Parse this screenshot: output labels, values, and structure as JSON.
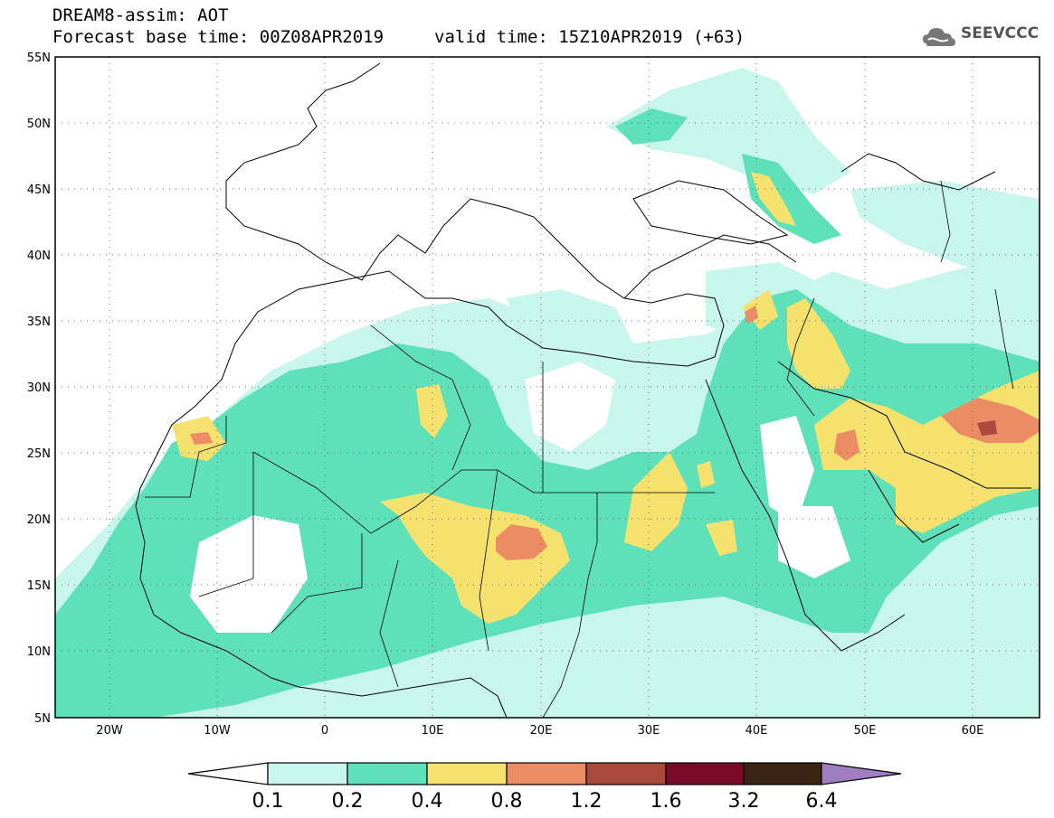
{
  "title": {
    "model_line": "DREAM8-assim: AOT",
    "base_time": "Forecast base time: 00Z08APR2019",
    "valid_time": "valid time: 15Z10APR2019 (+63)"
  },
  "logo": {
    "text": "SEEVCCC",
    "icon": "cloud-icon"
  },
  "map": {
    "lon_range": [
      -25,
      65
    ],
    "lat_range": [
      5,
      55
    ],
    "lat_ticks": [
      "55N",
      "50N",
      "45N",
      "40N",
      "35N",
      "30N",
      "25N",
      "20N",
      "15N",
      "10N",
      "5N"
    ],
    "lon_ticks": [
      "20W",
      "10W",
      "0",
      "10E",
      "20E",
      "30E",
      "40E",
      "50E",
      "60E"
    ]
  },
  "colorbar": {
    "labels": [
      "0.1",
      "0.2",
      "0.4",
      "0.8",
      "1.2",
      "1.6",
      "3.2",
      "6.4"
    ],
    "colors": [
      "#ffffff",
      "#c8f5ec",
      "#5ee0b8",
      "#f5e26e",
      "#eb8c64",
      "#a84a3c",
      "#7a0a28",
      "#3c2414",
      "#a07cc0"
    ]
  },
  "colors": {
    "aot_0_1_0_2": "#c8f5ec",
    "aot_0_2_0_4": "#5ee0b8",
    "aot_0_4_0_8": "#f5e26e",
    "aot_0_8_1_2": "#eb8c64",
    "aot_1_2_1_6": "#a84a3c"
  }
}
